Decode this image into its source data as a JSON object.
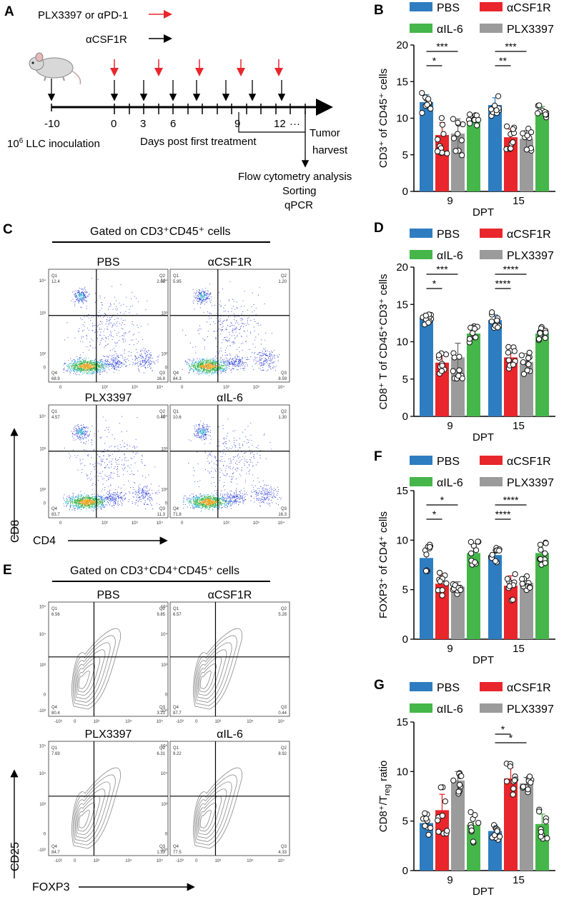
{
  "panels": {
    "a": "A",
    "b": "B",
    "c": "C",
    "d": "D",
    "e": "E",
    "f": "F",
    "g": "G"
  },
  "schematic": {
    "legend_red": "PLX3397 or αPD-1",
    "legend_black": "αCSF1R",
    "tick_m10": "-10",
    "tick_0": "0",
    "tick_3": "3",
    "tick_6": "6",
    "tick_9": "9",
    "tick_12": "12",
    "tick_dots": "···",
    "inoc_base": "10",
    "inoc_sup": "6",
    "inoc_rest": " LLC inoculation",
    "days_label": "Days post first treatment",
    "tumor": "Tumor",
    "harvest": "harvest",
    "flow": "Flow cytometry analysis",
    "sorting": "Sorting",
    "qpcr": "qPCR",
    "colors": {
      "red": "#e8262b",
      "black": "#111111"
    }
  },
  "flow_c": {
    "title": "Gated on CD3⁺CD45⁺ cells",
    "y_axis": "CD8",
    "x_axis": "CD4",
    "plots": [
      {
        "name": "PBS",
        "q1": "Q1",
        "q1v": "12.4",
        "q2": "Q2",
        "q2v": "2.02",
        "q3": "Q3",
        "q3v": "16.8",
        "q4": "Q4",
        "q4v": "68.9"
      },
      {
        "name": "αCSF1R",
        "q1": "Q1",
        "q1v": "5.95",
        "q2": "Q2",
        "q2v": "1.20",
        "q3": "Q3",
        "q3v": "8.59",
        "q4": "Q4",
        "q4v": "84.3"
      },
      {
        "name": "PLX3397",
        "q1": "Q1",
        "q1v": "4.57",
        "q2": "Q2",
        "q2v": "0.40",
        "q3": "Q3",
        "q3v": "11.3",
        "q4": "Q4",
        "q4v": "83.7"
      },
      {
        "name": "αIL-6",
        "q1": "Q1",
        "q1v": "10.6",
        "q2": "Q2",
        "q2v": "1.30",
        "q3": "Q3",
        "q3v": "16.3",
        "q4": "Q4",
        "q4v": "71.8"
      }
    ],
    "yticks": [
      "10⁴",
      "10³",
      "10²",
      "0"
    ],
    "xticks": [
      "0",
      "10²",
      "10³",
      "10⁴"
    ]
  },
  "flow_e": {
    "title": "Gated on CD3⁺CD4⁺CD45⁺ cells",
    "y_axis": "CD25",
    "x_axis": "FOXP3",
    "plots": [
      {
        "name": "PBS",
        "q1": "Q1",
        "q1v": "6.56",
        "q2": "Q2",
        "q2v": "9.85",
        "q3": "Q3",
        "q3v": "3.21",
        "q4": "Q4",
        "q4v": "80.4"
      },
      {
        "name": "αCSF1R",
        "q1": "Q1",
        "q1v": "6.57",
        "q2": "Q2",
        "q2v": "5.28",
        "q3": "Q3",
        "q3v": "0.44",
        "q4": "Q4",
        "q4v": "87.7"
      },
      {
        "name": "PLX3397",
        "q1": "Q1",
        "q1v": "7.69",
        "q2": "Q2",
        "q2v": "6.31",
        "q3": "Q3",
        "q3v": "1.33",
        "q4": "Q4",
        "q4v": "84.7"
      },
      {
        "name": "αIL-6",
        "q1": "Q1",
        "q1v": "9.22",
        "q2": "Q2",
        "q2v": "8.92",
        "q3": "Q3",
        "q3v": "4.33",
        "q4": "Q4",
        "q4v": "77.5"
      }
    ],
    "yticks": [
      "10⁵",
      "10⁴",
      "10³",
      "0",
      "-10³"
    ],
    "xticks": [
      "-10³",
      "0",
      "10³",
      "10⁴",
      "10⁵"
    ]
  },
  "chart_data": [
    {
      "panel": "B",
      "type": "bar",
      "ylabel": "CD3⁺ of CD45⁺ cells",
      "xlabel": "DPT",
      "categories": [
        "9",
        "15"
      ],
      "ylim": [
        0,
        20
      ],
      "yticks": [
        "0",
        "5",
        "10",
        "15",
        "20"
      ],
      "legend": [
        "PBS",
        "αCSF1R",
        "αIL-6",
        "PLX3397"
      ],
      "series": [
        {
          "name": "PBS",
          "color": "#2e7dc1",
          "values": [
            12.2,
            11.8
          ],
          "err": [
            1.0,
            1.0
          ]
        },
        {
          "name": "αCSF1R",
          "color": "#e8262b",
          "values": [
            7.7,
            7.4
          ],
          "err": [
            1.7,
            1.1
          ]
        },
        {
          "name": "PLX3397",
          "color": "#9b9b9b",
          "values": [
            7.9,
            7.2
          ],
          "err": [
            2.0,
            1.1
          ]
        },
        {
          "name": "αIL-6",
          "color": "#45b649",
          "values": [
            9.9,
            11.0
          ],
          "err": [
            0.6,
            0.6
          ]
        }
      ],
      "sig": [
        {
          "cat": 0,
          "to": "PLX3397",
          "label": "***"
        },
        {
          "cat": 0,
          "to": "αCSF1R",
          "label": "*"
        },
        {
          "cat": 1,
          "to": "PLX3397",
          "label": "***"
        },
        {
          "cat": 1,
          "to": "αCSF1R",
          "label": "**"
        }
      ]
    },
    {
      "panel": "D",
      "type": "bar",
      "ylabel": "CD8⁺ T of CD45⁺CD3⁺ cells",
      "xlabel": "DPT",
      "categories": [
        "9",
        "15"
      ],
      "ylim": [
        0,
        20
      ],
      "yticks": [
        "0",
        "5",
        "10",
        "15",
        "20"
      ],
      "legend": [
        "PBS",
        "αCSF1R",
        "αIL-6",
        "PLX3397"
      ],
      "series": [
        {
          "name": "PBS",
          "color": "#2e7dc1",
          "values": [
            13.2,
            12.9
          ],
          "err": [
            0.6,
            0.7
          ]
        },
        {
          "name": "αCSF1R",
          "color": "#e8262b",
          "values": [
            7.2,
            7.9
          ],
          "err": [
            1.0,
            1.0
          ]
        },
        {
          "name": "PLX3397",
          "color": "#9b9b9b",
          "values": [
            7.9,
            7.3
          ],
          "err": [
            1.9,
            1.1
          ]
        },
        {
          "name": "αIL-6",
          "color": "#45b649",
          "values": [
            11.1,
            11.1
          ],
          "err": [
            0.8,
            0.6
          ]
        }
      ],
      "sig": [
        {
          "cat": 0,
          "to": "PLX3397",
          "label": "***"
        },
        {
          "cat": 0,
          "to": "αCSF1R",
          "label": "*"
        },
        {
          "cat": 1,
          "to": "PLX3397",
          "label": "****"
        },
        {
          "cat": 1,
          "to": "αCSF1R",
          "label": "****"
        }
      ]
    },
    {
      "panel": "F",
      "type": "bar",
      "ylabel": "FOXP3⁺ of CD4⁺ cells",
      "xlabel": "DPT",
      "categories": [
        "9",
        "15"
      ],
      "ylim": [
        0,
        15
      ],
      "yticks": [
        "0",
        "5",
        "10",
        "15"
      ],
      "legend": [
        "PBS",
        "αCSF1R",
        "αIL-6",
        "PLX3397"
      ],
      "series": [
        {
          "name": "PBS",
          "color": "#2e7dc1",
          "values": [
            8.2,
            8.5
          ],
          "err": [
            0.9,
            0.5
          ]
        },
        {
          "name": "αCSF1R",
          "color": "#e8262b",
          "values": [
            5.6,
            5.4
          ],
          "err": [
            0.8,
            1.0
          ]
        },
        {
          "name": "PLX3397",
          "color": "#9b9b9b",
          "values": [
            5.3,
            5.7
          ],
          "err": [
            0.5,
            0.5
          ]
        },
        {
          "name": "αIL-6",
          "color": "#45b649",
          "values": [
            8.7,
            8.7
          ],
          "err": [
            0.8,
            0.8
          ]
        }
      ],
      "sig": [
        {
          "cat": 0,
          "to": "PLX3397",
          "label": "*"
        },
        {
          "cat": 0,
          "to": "αCSF1R",
          "label": "*"
        },
        {
          "cat": 1,
          "to": "PLX3397",
          "label": "****"
        },
        {
          "cat": 1,
          "to": "αCSF1R",
          "label": "****"
        }
      ]
    },
    {
      "panel": "G",
      "type": "bar",
      "ylabel": "CD8⁺/T_reg ratio",
      "xlabel": "DPT",
      "categories": [
        "9",
        "15"
      ],
      "ylim": [
        0,
        15
      ],
      "yticks": [
        "0",
        "5",
        "10",
        "15"
      ],
      "legend": [
        "PBS",
        "αCSF1R",
        "αIL-6",
        "PLX3397"
      ],
      "series": [
        {
          "name": "PBS",
          "color": "#2e7dc1",
          "values": [
            4.8,
            4.0
          ],
          "err": [
            0.8,
            0.6
          ]
        },
        {
          "name": "αCSF1R",
          "color": "#e8262b",
          "values": [
            6.1,
            9.3
          ],
          "err": [
            1.6,
            1.1
          ]
        },
        {
          "name": "PLX3397",
          "color": "#9b9b9b",
          "values": [
            9.1,
            8.8
          ],
          "err": [
            0.9,
            0.6
          ]
        },
        {
          "name": "αIL-6",
          "color": "#45b649",
          "values": [
            4.6,
            4.7
          ],
          "err": [
            1.2,
            1.0
          ]
        }
      ],
      "sig": [
        {
          "cat": 1,
          "from": "PBS",
          "to": "PLX3397",
          "label": "*"
        },
        {
          "cat": 1,
          "from": "PBS",
          "to": "αCSF1R",
          "label": "*"
        }
      ]
    }
  ]
}
